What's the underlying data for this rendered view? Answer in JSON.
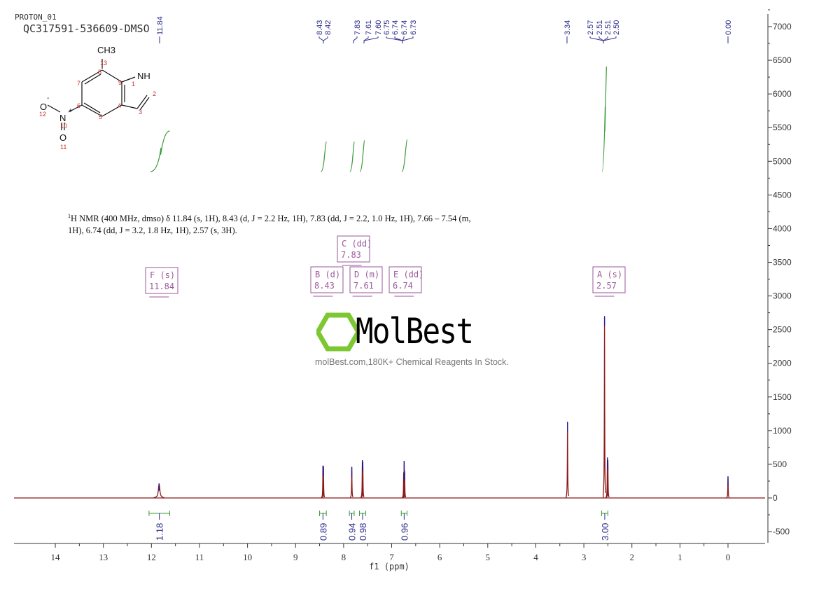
{
  "header": {
    "experiment": "PROTON_01",
    "sample": "QC317591-536609-DMSO"
  },
  "description": {
    "sup": "1",
    "text": "H NMR (400 MHz, dmso) δ 11.84 (s, 1H), 8.43 (d, J = 2.2 Hz, 1H), 7.83 (dd, J = 2.2, 1.0 Hz, 1H), 7.66 – 7.54 (m, 1H), 6.74 (dd, J = 3.2, 1.8 Hz, 1H), 2.57 (s, 3H)."
  },
  "watermark": {
    "brand": "MolBest",
    "tagline": "molBest.com,180K+ Chemical Reagents In Stock."
  },
  "molecule": {
    "atoms": [
      "CH3",
      "NH",
      "O",
      "N",
      "O"
    ],
    "charges": [
      "-",
      "+"
    ],
    "numbers": [
      "13",
      "8",
      "9",
      "1",
      "2",
      "7",
      "6",
      "4",
      "3",
      "5",
      "12",
      "10",
      "11"
    ]
  },
  "chart_data": {
    "type": "line",
    "xlabel": "f1 (ppm)",
    "xlim": [
      14.86,
      -0.77
    ],
    "ylim": [
      -665,
      7190
    ],
    "x_ticks": [
      14,
      13,
      12,
      11,
      10,
      9,
      8,
      7,
      6,
      5,
      4,
      3,
      2,
      1,
      0
    ],
    "y_ticks": [
      7000,
      6500,
      6000,
      5500,
      5000,
      4500,
      4000,
      3500,
      3000,
      2500,
      2000,
      1500,
      1000,
      500,
      0,
      -500
    ],
    "colors": {
      "spectrum": "#8b1a1a",
      "peak_tip": "#1a1a9a",
      "integral": "#3a9a3a",
      "labels": "#2a2a8a",
      "multiplet": "#9a5a9a"
    },
    "peaks": [
      {
        "ppm": 11.84,
        "height": 215,
        "width": 0.035
      },
      {
        "ppm": 8.43,
        "height": 480,
        "width": 0.006
      },
      {
        "ppm": 8.42,
        "height": 470,
        "width": 0.006
      },
      {
        "ppm": 7.83,
        "height": 460,
        "width": 0.006
      },
      {
        "ppm": 7.61,
        "height": 560,
        "width": 0.006
      },
      {
        "ppm": 7.6,
        "height": 540,
        "width": 0.006
      },
      {
        "ppm": 6.75,
        "height": 380,
        "width": 0.006
      },
      {
        "ppm": 6.74,
        "height": 550,
        "width": 0.006
      },
      {
        "ppm": 6.73,
        "height": 400,
        "width": 0.006
      },
      {
        "ppm": 3.34,
        "height": 1130,
        "width": 0.006
      },
      {
        "ppm": 2.57,
        "height": 2700,
        "width": 0.006
      },
      {
        "ppm": 2.51,
        "height": 600,
        "width": 0.005
      },
      {
        "ppm": 2.5,
        "height": 560,
        "width": 0.005
      },
      {
        "ppm": 0.0,
        "height": 320,
        "width": 0.005
      }
    ],
    "peak_labels": [
      "11.84",
      "8.43",
      "8.42",
      "7.83",
      "7.61",
      "7.60",
      "6.75",
      "6.74",
      "6.74",
      "6.73",
      "3.34",
      "2.57",
      "2.51",
      "2.51",
      "2.50",
      "0.00"
    ],
    "integrals": [
      {
        "from": 12.05,
        "to": 11.62,
        "value": "1.18"
      },
      {
        "from": 8.5,
        "to": 8.36,
        "value": "0.89"
      },
      {
        "from": 7.88,
        "to": 7.78,
        "value": "0.94"
      },
      {
        "from": 7.67,
        "to": 7.54,
        "value": "0.98"
      },
      {
        "from": 6.8,
        "to": 6.68,
        "value": "0.96"
      },
      {
        "from": 2.63,
        "to": 2.5,
        "value": "3.00"
      }
    ],
    "multiplets": [
      {
        "letter": "F",
        "type": "s",
        "shift": "11.84"
      },
      {
        "letter": "B",
        "type": "d",
        "shift": "8.43"
      },
      {
        "letter": "C",
        "type": "dd",
        "shift": "7.83"
      },
      {
        "letter": "D",
        "type": "m",
        "shift": "7.61"
      },
      {
        "letter": "E",
        "type": "dd",
        "shift": "6.74"
      },
      {
        "letter": "A",
        "type": "s",
        "shift": "2.57"
      }
    ]
  }
}
